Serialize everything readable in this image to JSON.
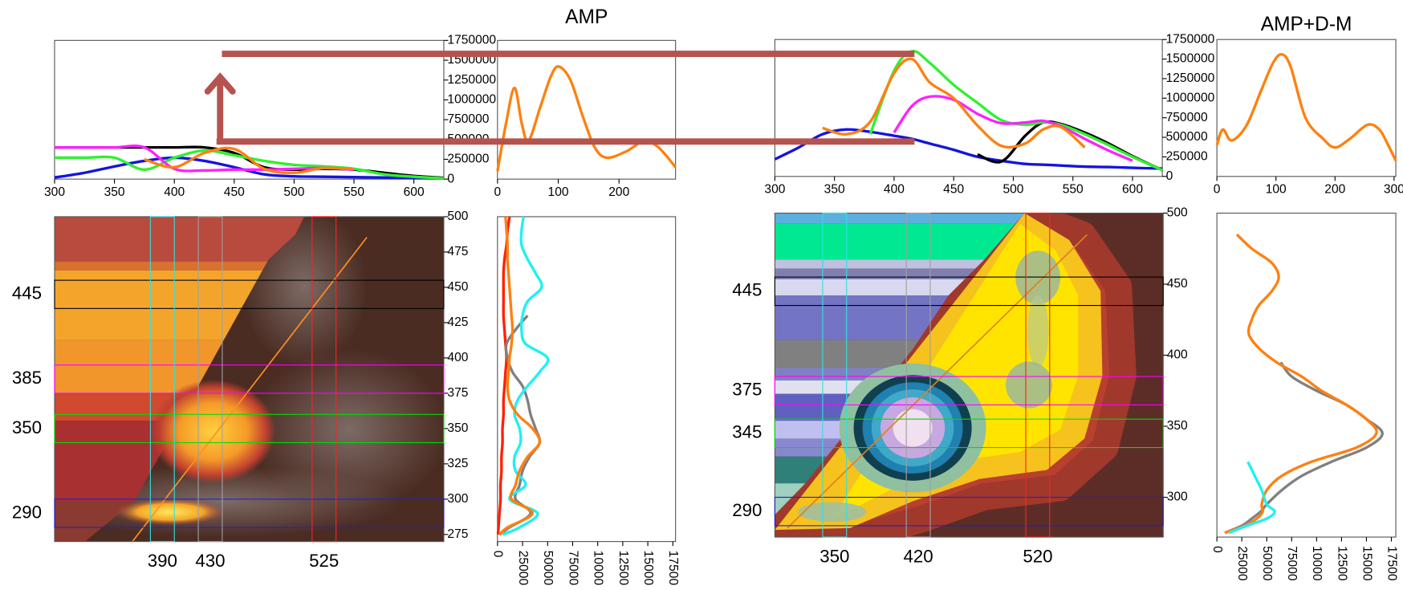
{
  "chart_data": [
    {
      "type": "line",
      "x": [
        300,
        325,
        350,
        375,
        400,
        425,
        450,
        475,
        500,
        525,
        550,
        575,
        600,
        625
      ],
      "xlim": [
        300,
        625
      ],
      "ylim": [
        0,
        1750000
      ],
      "xticks": [
        300,
        350,
        400,
        450,
        500,
        550,
        600
      ],
      "yticks": [
        0,
        250000,
        500000,
        750000,
        1000000,
        1250000,
        1500000,
        1750000
      ],
      "series": [
        {
          "color": "#000000",
          "values": [
            400000,
            400000,
            400000,
            400000,
            400000,
            400000,
            330000,
            150000,
            120000,
            130000,
            120000,
            80000,
            40000,
            15000
          ]
        },
        {
          "color": "#1414e0",
          "values": [
            20000,
            80000,
            160000,
            230000,
            270000,
            230000,
            150000,
            60000,
            35000,
            30000,
            25000,
            20000,
            15000,
            10000
          ]
        },
        {
          "color": "#30f030",
          "values": [
            270000,
            270000,
            270000,
            120000,
            270000,
            360000,
            300000,
            230000,
            180000,
            160000,
            130000,
            60000,
            30000,
            10000
          ]
        },
        {
          "color": "#ff20ff",
          "values": [
            400000,
            400000,
            400000,
            400000,
            130000,
            110000,
            120000,
            120000,
            130000,
            140000,
            120000,
            null,
            null,
            null
          ]
        },
        {
          "color": "#ff8010",
          "values": [
            null,
            null,
            null,
            250000,
            150000,
            330000,
            380000,
            130000,
            80000,
            140000,
            130000,
            null,
            null,
            null
          ]
        }
      ]
    },
    {
      "type": "line",
      "title": "AMP",
      "x": [
        0,
        14,
        28,
        40,
        51,
        70,
        88,
        101,
        120,
        140,
        160,
        180,
        212,
        241,
        265,
        293
      ],
      "xlim": [
        0,
        293
      ],
      "ylim": [
        0,
        1750000
      ],
      "xticks": [
        0,
        100,
        200
      ],
      "series": [
        {
          "color": "#ff8010",
          "values": [
            100000,
            700000,
            1150000,
            700000,
            480000,
            900000,
            1300000,
            1420000,
            1250000,
            800000,
            400000,
            270000,
            350000,
            480000,
            400000,
            150000
          ]
        }
      ]
    },
    {
      "type": "map",
      "xlim": [
        300,
        625
      ],
      "ylim": [
        270,
        500
      ],
      "yticks": [
        275,
        300,
        325,
        350,
        375,
        400,
        425,
        450,
        475,
        500
      ],
      "rows": [
        445,
        385,
        350,
        290
      ],
      "row_colors": [
        "#000000",
        "#ff00ff",
        "#00dd00",
        "#2020d0"
      ],
      "columns": [
        390,
        430,
        525
      ],
      "column_colors": [
        "#30e0e0",
        "#a0a0a0",
        "#ff2020"
      ]
    },
    {
      "type": "line",
      "y": [
        500,
        490,
        480,
        470,
        460,
        450,
        440,
        430,
        420,
        410,
        400,
        390,
        380,
        370,
        360,
        350,
        340,
        330,
        320,
        310,
        300,
        290,
        280,
        275
      ],
      "xlim": [
        0,
        175000
      ],
      "ylim": [
        270,
        500
      ],
      "xticks": [
        0,
        25000,
        50000,
        75000,
        {
          "value": 100000,
          "label": "10000"
        },
        {
          "value": 125000,
          "label": "12500"
        },
        {
          "value": 150000,
          "label": "15000"
        },
        {
          "value": 175000,
          "label": "17500"
        }
      ],
      "series": [
        {
          "color": "#ff2000",
          "values": [
            12000,
            10000,
            9000,
            7000,
            6000,
            6000,
            6000,
            6000,
            7000,
            8000,
            9000,
            8000,
            7000,
            6000,
            6000,
            5000,
            5000,
            4000,
            4000,
            3000,
            3000,
            2000,
            1000,
            500
          ]
        },
        {
          "color": "#808080",
          "values": [
            null,
            null,
            null,
            null,
            null,
            null,
            null,
            30000,
            18000,
            9000,
            10000,
            15000,
            25000,
            30000,
            33000,
            38000,
            42000,
            32000,
            25000,
            22000,
            18000,
            33000,
            12000,
            2000
          ]
        },
        {
          "color": "#20f0f0",
          "values": [
            26000,
            24000,
            24000,
            30000,
            38000,
            44000,
            30000,
            25000,
            24000,
            28000,
            50000,
            42000,
            30000,
            20000,
            17000,
            22000,
            23000,
            17000,
            18000,
            28000,
            12000,
            40000,
            22000,
            5000
          ]
        },
        {
          "color": "#ff8010",
          "values": [
            8000,
            9000,
            10000,
            10000,
            11000,
            12000,
            13000,
            14000,
            15000,
            14000,
            12000,
            11000,
            10000,
            12000,
            20000,
            35000,
            42000,
            30000,
            22000,
            18000,
            14000,
            35000,
            10000,
            2000
          ]
        }
      ]
    },
    {
      "type": "line",
      "x": [
        300,
        320,
        340,
        360,
        380,
        400,
        415,
        430,
        450,
        470,
        490,
        510,
        525,
        540,
        560,
        580,
        600,
        625
      ],
      "xlim": [
        300,
        625
      ],
      "ylim": [
        0,
        1750000
      ],
      "xticks": [
        300,
        350,
        400,
        450,
        500,
        550,
        600
      ],
      "yticks": [
        0,
        250000,
        500000,
        750000,
        1000000,
        1250000,
        1500000,
        1750000
      ],
      "series": [
        {
          "color": "#1414e0",
          "values": [
            220000,
            370000,
            540000,
            600000,
            570000,
            520000,
            480000,
            420000,
            340000,
            250000,
            200000,
            160000,
            150000,
            140000,
            125000,
            120000,
            110000,
            100000
          ]
        },
        {
          "color": "#000000",
          "values": [
            null,
            null,
            null,
            null,
            null,
            null,
            null,
            null,
            null,
            280000,
            190000,
            520000,
            690000,
            670000,
            560000,
            420000,
            260000,
            80000
          ]
        },
        {
          "color": "#30f030",
          "values": [
            null,
            null,
            null,
            null,
            540000,
            1350000,
            1600000,
            1450000,
            1170000,
            940000,
            720000,
            660000,
            690000,
            660000,
            540000,
            400000,
            250000,
            80000
          ]
        },
        {
          "color": "#ff20ff",
          "values": [
            null,
            null,
            null,
            null,
            null,
            560000,
            900000,
            1020000,
            980000,
            800000,
            680000,
            690000,
            710000,
            640000,
            480000,
            330000,
            200000,
            null
          ]
        },
        {
          "color": "#ff8010",
          "values": [
            null,
            null,
            620000,
            540000,
            700000,
            1320000,
            1500000,
            1200000,
            1000000,
            650000,
            390000,
            420000,
            600000,
            630000,
            370000,
            null,
            null,
            null
          ]
        }
      ]
    },
    {
      "type": "line",
      "title": "AMP+D-M",
      "x": [
        0,
        10,
        25,
        50,
        75,
        95,
        110,
        125,
        150,
        180,
        200,
        225,
        255,
        275,
        290,
        303
      ],
      "xlim": [
        0,
        303
      ],
      "ylim": [
        0,
        1750000
      ],
      "xticks": [
        0,
        100,
        200,
        300
      ],
      "series": [
        {
          "color": "#ff8010",
          "values": [
            400000,
            600000,
            460000,
            650000,
            1100000,
            1450000,
            1560000,
            1400000,
            750000,
            480000,
            370000,
            480000,
            660000,
            600000,
            400000,
            200000
          ]
        }
      ]
    },
    {
      "type": "map",
      "xlim": [
        300,
        625
      ],
      "ylim": [
        272,
        500
      ],
      "yticks": [
        300,
        350,
        400,
        450,
        500
      ],
      "rows": [
        445,
        375,
        345,
        290
      ],
      "row_colors": [
        "#000000",
        "#ff00ff",
        "#00dd00",
        "#2020d0"
      ],
      "columns": [
        350,
        420,
        520
      ],
      "column_colors": [
        "#30e0e0",
        "#a0a0a0",
        "#ff2020"
      ]
    },
    {
      "type": "line",
      "y": [
        485,
        475,
        465,
        455,
        445,
        435,
        425,
        415,
        405,
        395,
        385,
        375,
        365,
        355,
        345,
        335,
        325,
        315,
        305,
        295,
        290,
        285,
        280,
        275
      ],
      "xlim": [
        0,
        175000
      ],
      "ylim": [
        272,
        500
      ],
      "xticks": [
        0,
        25000,
        50000,
        75000,
        {
          "value": 100000,
          "label": "10000"
        },
        {
          "value": 125000,
          "label": "12500"
        },
        {
          "value": 150000,
          "label": "15000"
        },
        {
          "value": 175000,
          "label": "17500"
        }
      ],
      "series": [
        {
          "color": "#808080",
          "values": [
            null,
            null,
            null,
            null,
            null,
            null,
            null,
            null,
            null,
            64000,
            75000,
            100000,
            130000,
            150000,
            166000,
            150000,
            115000,
            85000,
            65000,
            50000,
            44000,
            35000,
            25000,
            8000
          ]
        },
        {
          "color": "#ff8010",
          "values": [
            20000,
            35000,
            55000,
            62000,
            55000,
            42000,
            35000,
            32000,
            42000,
            60000,
            85000,
            105000,
            130000,
            150000,
            160000,
            140000,
            95000,
            65000,
            50000,
            45000,
            46000,
            40000,
            28000,
            8000
          ]
        },
        {
          "color": "#20f0f0",
          "values": [
            null,
            null,
            null,
            null,
            null,
            null,
            null,
            null,
            null,
            null,
            null,
            null,
            null,
            null,
            null,
            null,
            31000,
            38000,
            45000,
            50000,
            58000,
            50000,
            30000,
            12000
          ]
        }
      ]
    }
  ]
}
